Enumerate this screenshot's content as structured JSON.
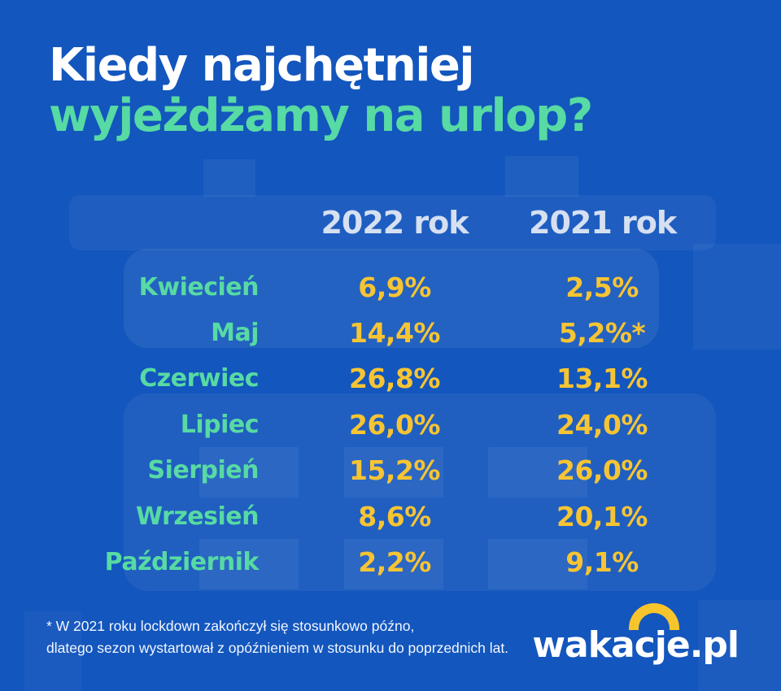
{
  "title": {
    "line1": "Kiedy najchętniej",
    "line2": "wyjeżdżamy na urlop?"
  },
  "table": {
    "columns": [
      "2022 rok",
      "2021 rok"
    ],
    "rows": [
      {
        "month": "Kwiecień",
        "y2022": "6,9%",
        "y2021": "2,5%"
      },
      {
        "month": "Maj",
        "y2022": "14,4%",
        "y2021": "5,2%*"
      },
      {
        "month": "Czerwiec",
        "y2022": "26,8%",
        "y2021": "13,1%"
      },
      {
        "month": "Lipiec",
        "y2022": "26,0%",
        "y2021": "24,0%"
      },
      {
        "month": "Sierpień",
        "y2022": "15,2%",
        "y2021": "26,0%"
      },
      {
        "month": "Wrzesień",
        "y2022": "8,6%",
        "y2021": "20,1%"
      },
      {
        "month": "Październik",
        "y2022": "2,2%",
        "y2021": "9,1%"
      }
    ]
  },
  "footnote": {
    "line1": "* W 2021 roku lockdown zakończył się stosunkowo późno,",
    "line2": "dlatego sezon wystartował z opóźnieniem w stosunku do poprzednich lat."
  },
  "logo": {
    "text": "wakacje.pl"
  },
  "colors": {
    "background": "#1356BD",
    "title_line1": "#FFFFFF",
    "title_line2_accent": "#57DAA3",
    "column_header": "#D6E0F1",
    "month_label": "#57DAA3",
    "value": "#F7C433",
    "logo_arc": "#F8C42C"
  },
  "chart_data": {
    "type": "table",
    "title": "Kiedy najchętniej wyjeżdżamy na urlop?",
    "categories": [
      "Kwiecień",
      "Maj",
      "Czerwiec",
      "Lipiec",
      "Sierpień",
      "Wrzesień",
      "Październik"
    ],
    "series": [
      {
        "name": "2022 rok",
        "values": [
          6.9,
          14.4,
          26.8,
          26.0,
          15.2,
          8.6,
          2.2
        ]
      },
      {
        "name": "2021 rok",
        "values": [
          2.5,
          5.2,
          13.1,
          24.0,
          26.0,
          20.1,
          9.1
        ]
      }
    ],
    "unit": "%",
    "annotation": "* W 2021 roku lockdown zakończył się stosunkowo późno, dlatego sezon wystartował z opóźnieniem w stosunku do poprzednich lat."
  }
}
